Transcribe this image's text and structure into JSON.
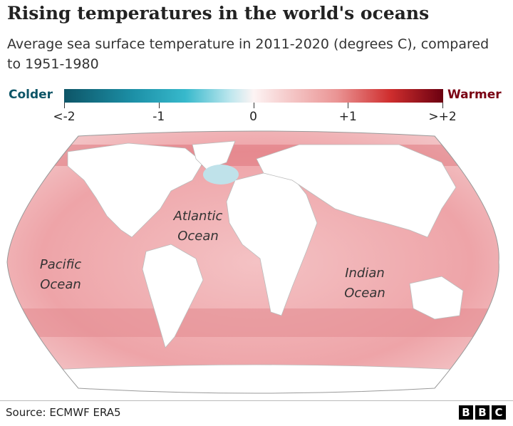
{
  "header": {
    "title": "Rising temperatures in the world's oceans",
    "subtitle": "Average sea surface temperature in 2011-2020 (degrees C), compared to 1951-1980"
  },
  "legend": {
    "low_label": "Colder",
    "high_label": "Warmer",
    "lim": [
      -2,
      2
    ],
    "ticks": [
      {
        "value": -2,
        "label": "<-2"
      },
      -1,
      0,
      {
        "value": 1,
        "label": "+1"
      },
      {
        "value": 2,
        "label": ">+2"
      }
    ]
  },
  "map": {
    "labels": [
      "Atlantic Ocean",
      "Pacific Ocean",
      "Indian Ocean"
    ]
  },
  "footer": {
    "source": "Source: ECMWF ERA5",
    "logo": [
      "B",
      "B",
      "C"
    ]
  }
}
